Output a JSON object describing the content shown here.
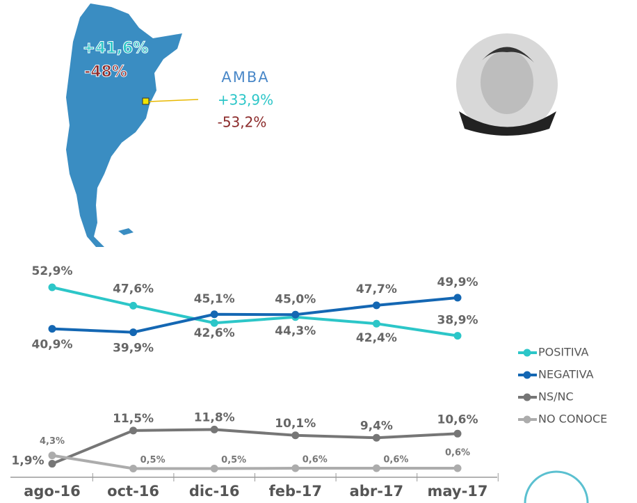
{
  "chart_data": {
    "type": "line",
    "annotations": {
      "map_positive": "+41,6%",
      "map_negative": "-48%",
      "region": "AMBA",
      "region_positive": "+33,9%",
      "region_negative": "-53,2%"
    },
    "categories": [
      "ago-16",
      "oct-16",
      "dic-16",
      "feb-17",
      "abr-17",
      "may-17"
    ],
    "series": [
      {
        "name": "POSITIVA",
        "color": "#2cc6c8",
        "values": [
          52.9,
          47.6,
          42.6,
          44.3,
          42.4,
          38.9
        ],
        "value_labels": [
          "52,9%",
          "47,6%",
          "42,6%",
          "44,3%",
          "42,4%",
          "38,9%"
        ]
      },
      {
        "name": "NEGATIVA",
        "color": "#1467b3",
        "values": [
          40.9,
          39.9,
          45.1,
          45.0,
          47.7,
          49.9
        ],
        "value_labels": [
          "40,9%",
          "39,9%",
          "45,1%",
          "45,0%",
          "47,7%",
          "49,9%"
        ]
      },
      {
        "name": "NS/NC",
        "color": "#767676",
        "values": [
          1.9,
          11.5,
          11.8,
          10.1,
          9.4,
          10.6
        ],
        "value_labels": [
          "1,9%",
          "11,5%",
          "11,8%",
          "10,1%",
          "9,4%",
          "10,6%"
        ]
      },
      {
        "name": "NO CONOCE",
        "color": "#acacac",
        "values": [
          4.3,
          0.5,
          0.5,
          0.6,
          0.6,
          0.6
        ],
        "value_labels": [
          "4,3%",
          "0,5%",
          "0,5%",
          "0,6%",
          "0,6%",
          "0,6%"
        ]
      }
    ]
  }
}
